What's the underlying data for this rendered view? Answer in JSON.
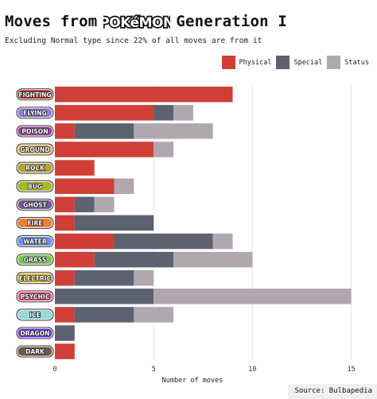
{
  "page": {
    "title_prefix": "Moves from",
    "logo_text": "POKéMON",
    "title_suffix": "Generation I",
    "subtitle": "Excluding Normal type since 22% of all moves are from it",
    "source": "Source: Bulbapedia"
  },
  "colors": {
    "Physical": "#cf3e37",
    "Special": "#5d6271",
    "Status": "#b0a8ae",
    "grid": "#e6e6e6",
    "types": {
      "FIGHTING": "#c03028",
      "FLYING": "#8f7ee6",
      "POISON": "#a040a0",
      "GROUND": "#d9b865",
      "ROCK": "#b8a038",
      "BUG": "#a8b820",
      "GHOST": "#705898",
      "FIRE": "#f08030",
      "WATER": "#6890f0",
      "GRASS": "#78c850",
      "ELECTRIC": "#e8c028",
      "PSYCHIC": "#f85888",
      "ICE": "#98d8d8",
      "DRAGON": "#7038f8",
      "DARK": "#705848"
    }
  },
  "chart_data": {
    "type": "bar",
    "orientation": "horizontal",
    "stacked": true,
    "title": "Moves from POKéMON Generation I",
    "subtitle": "Excluding Normal type since 22% of all moves are from it",
    "xlabel": "Number of moves",
    "xlim": [
      0,
      15.5
    ],
    "xticks": [
      0,
      5,
      10,
      15
    ],
    "grid": true,
    "legend_position": "top-right",
    "categories": [
      "FIGHTING",
      "FLYING",
      "POISON",
      "GROUND",
      "ROCK",
      "BUG",
      "GHOST",
      "FIRE",
      "WATER",
      "GRASS",
      "ELECTRIC",
      "PSYCHIC",
      "ICE",
      "DRAGON",
      "DARK"
    ],
    "series": [
      {
        "name": "Physical",
        "values": [
          9,
          5,
          1,
          5,
          2,
          3,
          1,
          1,
          3,
          2,
          1,
          0,
          1,
          0,
          1
        ]
      },
      {
        "name": "Special",
        "values": [
          0,
          1,
          3,
          0,
          0,
          0,
          1,
          4,
          5,
          4,
          3,
          5,
          3,
          1,
          0
        ]
      },
      {
        "name": "Status",
        "values": [
          0,
          1,
          4,
          1,
          0,
          1,
          1,
          0,
          1,
          4,
          1,
          10,
          2,
          0,
          0
        ]
      }
    ]
  }
}
